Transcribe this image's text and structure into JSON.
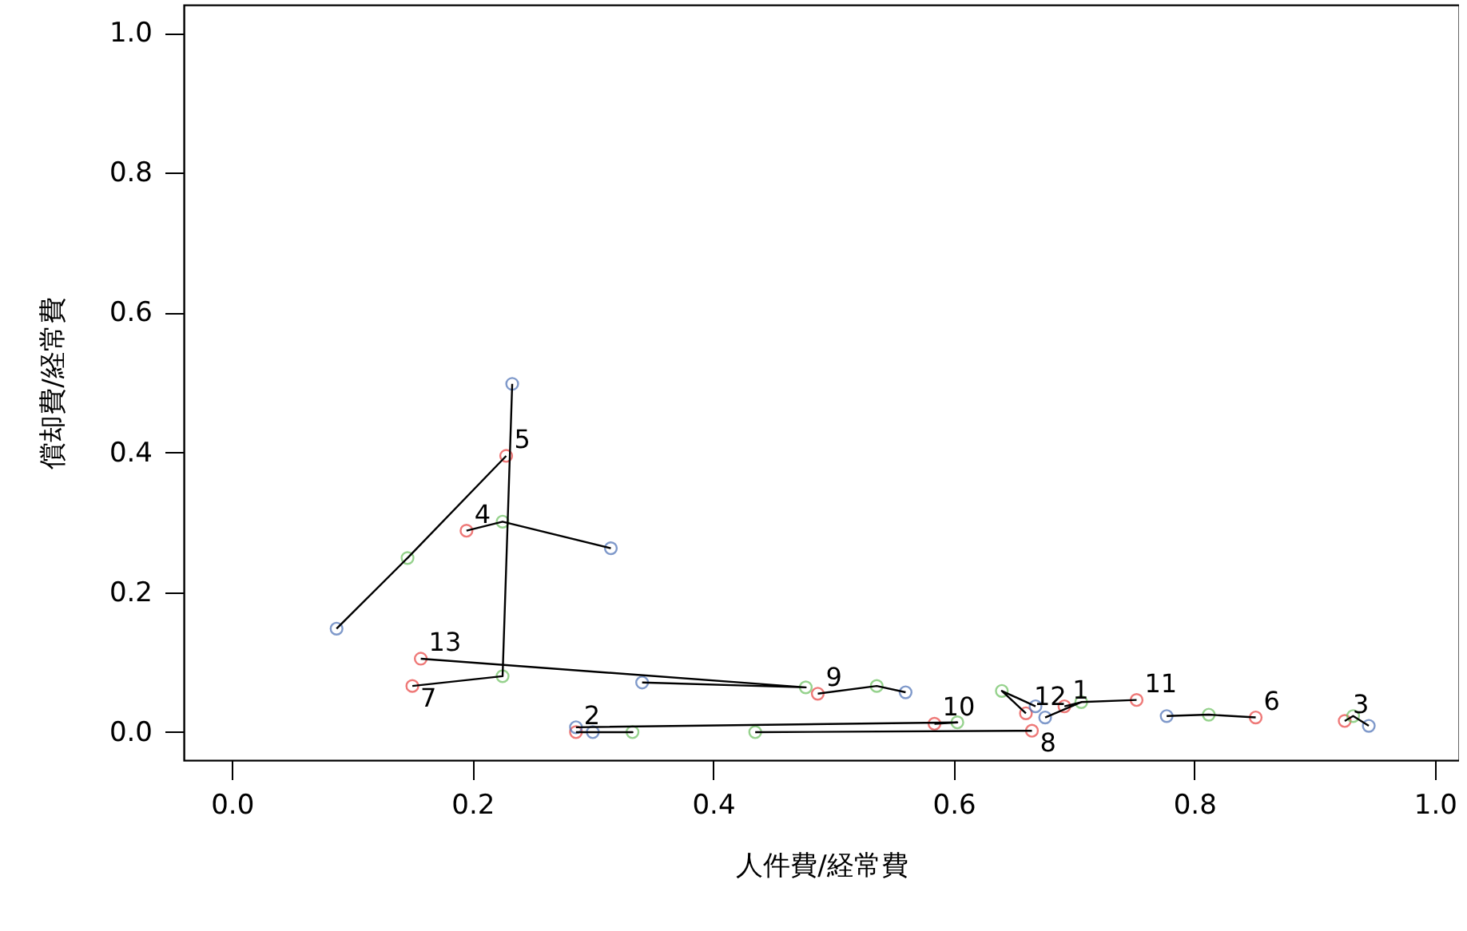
{
  "chart_data": {
    "type": "scatter",
    "xlabel": "人件費/経常費",
    "ylabel": "償却費/経常費",
    "xlim": [
      -0.04,
      1.02
    ],
    "ylim": [
      -0.04,
      1.04
    ],
    "xticks": [
      {
        "value": 0,
        "label": "0.0"
      },
      0.2,
      0.4,
      0.6,
      0.8,
      {
        "value": 1,
        "label": "1.0"
      }
    ],
    "yticks": [
      {
        "value": 0,
        "label": "0.0"
      },
      0.2,
      0.4,
      0.6,
      0.8,
      {
        "value": 1,
        "label": "1.0"
      }
    ],
    "grid": false,
    "marker": "circle",
    "series": [
      {
        "color": "#e8413f",
        "x": [
          0.692,
          0.286,
          0.925,
          0.195,
          0.228,
          0.851,
          0.15,
          0.665,
          0.487,
          0.584,
          0.752,
          0.66,
          0.157
        ],
        "values": [
          0.037,
          0.0,
          0.016,
          0.288,
          0.395,
          0.021,
          0.066,
          0.002,
          0.055,
          0.012,
          0.046,
          0.027,
          0.105
        ]
      },
      {
        "color": "#6abf5e",
        "x": [
          0.706,
          0.333,
          0.932,
          0.225,
          0.146,
          0.812,
          0.225,
          0.435,
          0.536,
          0.603,
          0.64,
          0.477
        ],
        "values": [
          0.043,
          0.0,
          0.023,
          0.301,
          0.249,
          0.025,
          0.08,
          0.0,
          0.066,
          0.014,
          0.059,
          0.064
        ]
      },
      {
        "color": "#4a6fb5",
        "x": [
          0.676,
          0.3,
          0.945,
          0.315,
          0.087,
          0.777,
          0.233,
          0.286,
          0.56,
          0.668,
          0.341
        ],
        "values": [
          0.021,
          0.0,
          0.009,
          0.263,
          0.148,
          0.023,
          0.498,
          0.007,
          0.057,
          0.037,
          0.071
        ]
      },
      {
        "type": "line",
        "color": "#000000",
        "marker": "none",
        "x": [
          0.692,
          0.706,
          0.676
        ],
        "values": [
          0.037,
          0.043,
          0.021
        ]
      },
      {
        "type": "line",
        "color": "#000000",
        "marker": "none",
        "x": [
          0.286,
          0.333,
          0.3
        ],
        "values": [
          0.0,
          0.0,
          0.0
        ]
      },
      {
        "type": "line",
        "color": "#000000",
        "marker": "none",
        "x": [
          0.925,
          0.932,
          0.945
        ],
        "values": [
          0.016,
          0.023,
          0.009
        ]
      },
      {
        "type": "line",
        "color": "#000000",
        "marker": "none",
        "x": [
          0.195,
          0.225,
          0.315
        ],
        "values": [
          0.288,
          0.301,
          0.263
        ]
      },
      {
        "type": "line",
        "color": "#000000",
        "marker": "none",
        "x": [
          0.228,
          0.146,
          0.087
        ],
        "values": [
          0.395,
          0.249,
          0.148
        ]
      },
      {
        "type": "line",
        "color": "#000000",
        "marker": "none",
        "x": [
          0.851,
          0.812,
          0.777
        ],
        "values": [
          0.021,
          0.025,
          0.023
        ]
      },
      {
        "type": "line",
        "color": "#000000",
        "marker": "none",
        "x": [
          0.15,
          0.225,
          0.233
        ],
        "values": [
          0.066,
          0.08,
          0.498
        ]
      },
      {
        "type": "line",
        "color": "#000000",
        "marker": "none",
        "x": [
          0.665,
          0.435
        ],
        "values": [
          0.002,
          0.0
        ]
      },
      {
        "type": "line",
        "color": "#000000",
        "marker": "none",
        "x": [
          0.487,
          0.536,
          0.56
        ],
        "values": [
          0.055,
          0.066,
          0.057
        ]
      },
      {
        "type": "line",
        "color": "#000000",
        "marker": "none",
        "x": [
          0.584,
          0.603,
          0.286
        ],
        "values": [
          0.012,
          0.014,
          0.007
        ]
      },
      {
        "type": "line",
        "color": "#000000",
        "marker": "none",
        "x": [
          0.752,
          0.706
        ],
        "values": [
          0.046,
          0.043
        ]
      },
      {
        "type": "line",
        "color": "#000000",
        "marker": "none",
        "x": [
          0.66,
          0.64,
          0.668
        ],
        "values": [
          0.027,
          0.059,
          0.037
        ]
      },
      {
        "type": "line",
        "color": "#000000",
        "marker": "none",
        "x": [
          0.157,
          0.477,
          0.341
        ],
        "values": [
          0.105,
          0.064,
          0.071
        ]
      }
    ],
    "annotations": [
      {
        "text": "1",
        "x": 0.692,
        "y": 0.037
      },
      {
        "text": "2",
        "x": 0.286,
        "y": 0.0
      },
      {
        "text": "3",
        "x": 0.925,
        "y": 0.016
      },
      {
        "text": "4",
        "x": 0.195,
        "y": 0.288
      },
      {
        "text": "5",
        "x": 0.228,
        "y": 0.395
      },
      {
        "text": "6",
        "x": 0.851,
        "y": 0.021
      },
      {
        "text": "7",
        "x": 0.15,
        "y": 0.066
      },
      {
        "text": "8",
        "x": 0.665,
        "y": 0.002
      },
      {
        "text": "9",
        "x": 0.487,
        "y": 0.055
      },
      {
        "text": "10",
        "x": 0.584,
        "y": 0.012
      },
      {
        "text": "11",
        "x": 0.752,
        "y": 0.046
      },
      {
        "text": "12",
        "x": 0.66,
        "y": 0.027
      },
      {
        "text": "13",
        "x": 0.157,
        "y": 0.105
      }
    ]
  }
}
